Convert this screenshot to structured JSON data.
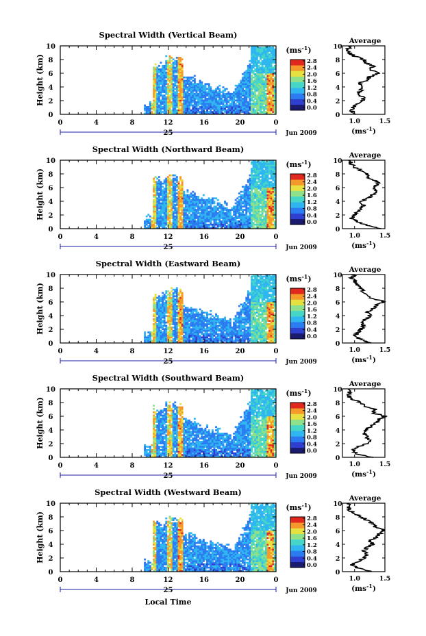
{
  "panels": [
    {
      "title": "Spectral Width (Vertical Beam)",
      "main_field": "Spectral Width",
      "beam": "Vertical Beam"
    },
    {
      "title": "Spectral Width (Northward Beam)",
      "main_field": "Spectral Width",
      "beam": "Northward Beam"
    },
    {
      "title": "Spectral Width (Eastward Beam)",
      "main_field": "Spectral Width",
      "beam": "Eastward Beam"
    },
    {
      "title": "Spectral Width (Southward Beam)",
      "main_field": "Spectral Width",
      "beam": "Southward Beam"
    },
    {
      "title": "Spectral Width (Westward Beam)",
      "main_field": "Spectral Width",
      "beam": "Westward Beam"
    }
  ],
  "common": {
    "ylabel": "Height (km)",
    "y_ticks": [
      "0",
      "2",
      "4",
      "6",
      "8",
      "10"
    ],
    "x_ticks": [
      "0",
      "4",
      "8",
      "12",
      "16",
      "20",
      "0"
    ],
    "day_label": "25",
    "date_label": "Jun 2009",
    "xlabel": "Local Time",
    "colorbar_unit": "(ms",
    "colorbar_unit_exp": "-1",
    "colorbar_unit_close": ")",
    "colorbar_ticks": [
      "0.0",
      "0.4",
      "0.8",
      "1.2",
      "1.6",
      "2.0",
      "2.4",
      "2.8"
    ],
    "avg_title": "Average",
    "avg_x_ticks": [
      "1.0",
      "1.5"
    ],
    "avg_xlabel": "(ms",
    "avg_xlabel_exp": "-1",
    "avg_xlabel_close": ")"
  },
  "chart_data": {
    "type": "heatmap",
    "main_plots": {
      "x_range_hours": [
        0,
        24
      ],
      "y_range_km": [
        0,
        10
      ],
      "colorbar_range_ms": [
        0.0,
        2.8
      ],
      "colors": [
        "#1a1a6e",
        "#2f3fcf",
        "#2b7cf0",
        "#2fb6f0",
        "#45d6c8",
        "#8ee08a",
        "#e6e040",
        "#f59a2a",
        "#e0281e"
      ],
      "data_region_hours": [
        9.3,
        24
      ],
      "data_max_height_km": 10
    },
    "average_profiles": {
      "x_range_ms": [
        0.8,
        1.5
      ],
      "y_range_km": [
        0,
        10
      ],
      "profiles": [
        {
          "beam": "Vertical",
          "height_km": [
            0,
            0.5,
            1,
            1.5,
            2,
            2.5,
            3,
            3.5,
            4,
            4.5,
            5,
            5.5,
            6,
            6.5,
            7,
            7.5,
            8,
            8.5,
            9,
            9.5,
            10
          ],
          "width_ms": [
            1.05,
            0.95,
            0.98,
            1.05,
            1.12,
            1.15,
            1.05,
            1.1,
            1.15,
            1.05,
            1.2,
            1.25,
            1.4,
            1.25,
            1.3,
            1.2,
            1.15,
            1.0,
            0.92,
            0.9,
            0.9
          ]
        },
        {
          "beam": "Northward",
          "height_km": [
            0,
            0.5,
            1,
            1.5,
            2,
            2.5,
            3,
            3.5,
            4,
            4.5,
            5,
            5.5,
            6,
            6.5,
            7,
            7.5,
            8,
            8.5,
            9,
            9.5,
            10
          ],
          "width_ms": [
            1.4,
            1.2,
            1.05,
            0.95,
            1.0,
            1.05,
            1.1,
            1.15,
            1.1,
            1.25,
            1.3,
            1.35,
            1.3,
            1.4,
            1.35,
            1.2,
            1.2,
            1.1,
            1.0,
            0.95,
            0.9
          ]
        },
        {
          "beam": "Eastward",
          "height_km": [
            0,
            0.5,
            1,
            1.5,
            2,
            2.5,
            3,
            3.5,
            4,
            4.5,
            5,
            5.5,
            6,
            6.5,
            7,
            7.5,
            8,
            8.5,
            9,
            9.5,
            10
          ],
          "width_ms": [
            1.25,
            1.1,
            1.0,
            1.05,
            1.1,
            1.15,
            1.1,
            1.2,
            1.25,
            1.2,
            1.3,
            1.35,
            1.5,
            1.3,
            1.2,
            1.15,
            1.1,
            1.05,
            1.0,
            0.95,
            1.0
          ]
        },
        {
          "beam": "Southward",
          "height_km": [
            0,
            0.5,
            1,
            1.5,
            2,
            2.5,
            3,
            3.5,
            4,
            4.5,
            5,
            5.5,
            6,
            6.5,
            7,
            7.5,
            8,
            8.5,
            9,
            9.5,
            10
          ],
          "width_ms": [
            1.3,
            1.05,
            0.95,
            1.05,
            1.2,
            1.25,
            1.2,
            1.15,
            1.2,
            1.25,
            1.35,
            1.4,
            1.5,
            1.3,
            1.35,
            1.15,
            1.1,
            0.95,
            0.9,
            0.9,
            0.9
          ]
        },
        {
          "beam": "Westward",
          "height_km": [
            0,
            0.5,
            1,
            1.5,
            2,
            2.5,
            3,
            3.5,
            4,
            4.5,
            5,
            5.5,
            6,
            6.5,
            7,
            7.5,
            8,
            8.5,
            9,
            9.5,
            10
          ],
          "width_ms": [
            1.3,
            1.05,
            0.95,
            1.05,
            1.15,
            1.2,
            1.15,
            1.2,
            1.3,
            1.25,
            1.35,
            1.4,
            1.5,
            1.35,
            1.3,
            1.2,
            1.1,
            1.0,
            0.92,
            0.9,
            0.9
          ]
        }
      ]
    }
  }
}
